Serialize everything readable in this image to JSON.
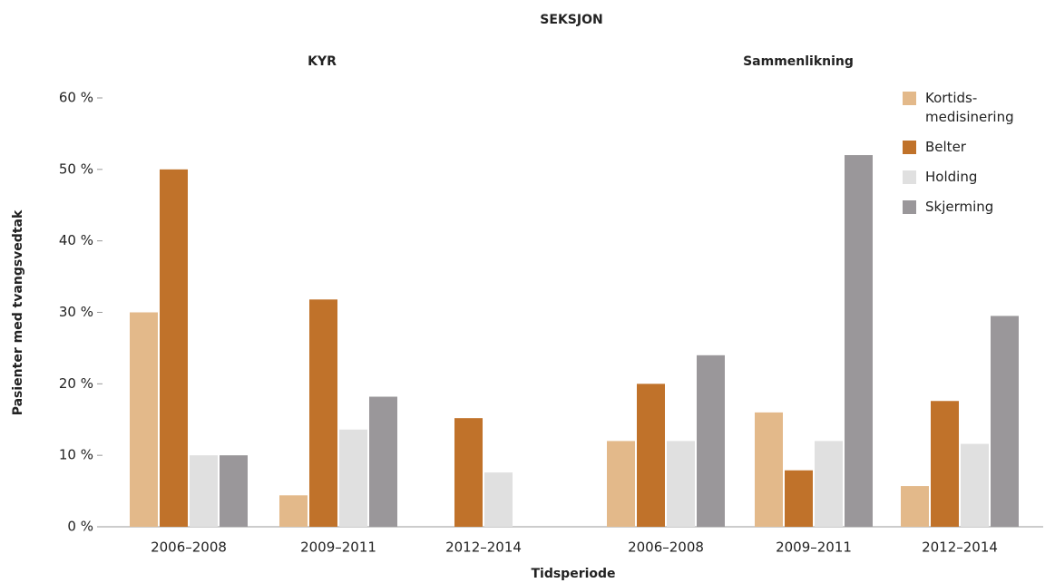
{
  "chart_data": {
    "type": "bar",
    "title": "SEKSJON",
    "xlabel": "Tidsperiode",
    "ylabel": "Pasienter med tvangsvedtak",
    "ylim": [
      0,
      60
    ],
    "yticks": [
      {
        "value": 0,
        "label": "0 %"
      },
      {
        "value": 10,
        "label": "10 %"
      },
      {
        "value": 20,
        "label": "20 %"
      },
      {
        "value": 30,
        "label": "30 %"
      },
      {
        "value": 40,
        "label": "40 %"
      },
      {
        "value": 50,
        "label": "50 %"
      },
      {
        "value": 60,
        "label": "60 %"
      }
    ],
    "legend": "upper right",
    "series": [
      {
        "name": "Kortids-\nmedisinering",
        "color": "#e3b98a"
      },
      {
        "name": "Belter",
        "color": "#c0722a"
      },
      {
        "name": "Holding",
        "color": "#e0e0e0"
      },
      {
        "name": "Skjerming",
        "color": "#9a979a"
      }
    ],
    "panels": [
      {
        "title": "KYR",
        "categories": [
          "2006–2008",
          "2009–2011",
          "2012–2014"
        ],
        "series": [
          {
            "values": [
              30,
              4.4,
              0
            ]
          },
          {
            "values": [
              50,
              31.8,
              15.2
            ]
          },
          {
            "values": [
              10,
              13.6,
              7.6
            ]
          },
          {
            "values": [
              10,
              18.2,
              0
            ]
          }
        ]
      },
      {
        "title": "Sammenlikning",
        "categories": [
          "2006–2008",
          "2009–2011",
          "2012–2014"
        ],
        "series": [
          {
            "values": [
              12,
              16,
              5.7
            ]
          },
          {
            "values": [
              20,
              7.9,
              17.6
            ]
          },
          {
            "values": [
              12,
              12,
              11.6
            ]
          },
          {
            "values": [
              24,
              52,
              29.5
            ]
          }
        ]
      }
    ]
  }
}
